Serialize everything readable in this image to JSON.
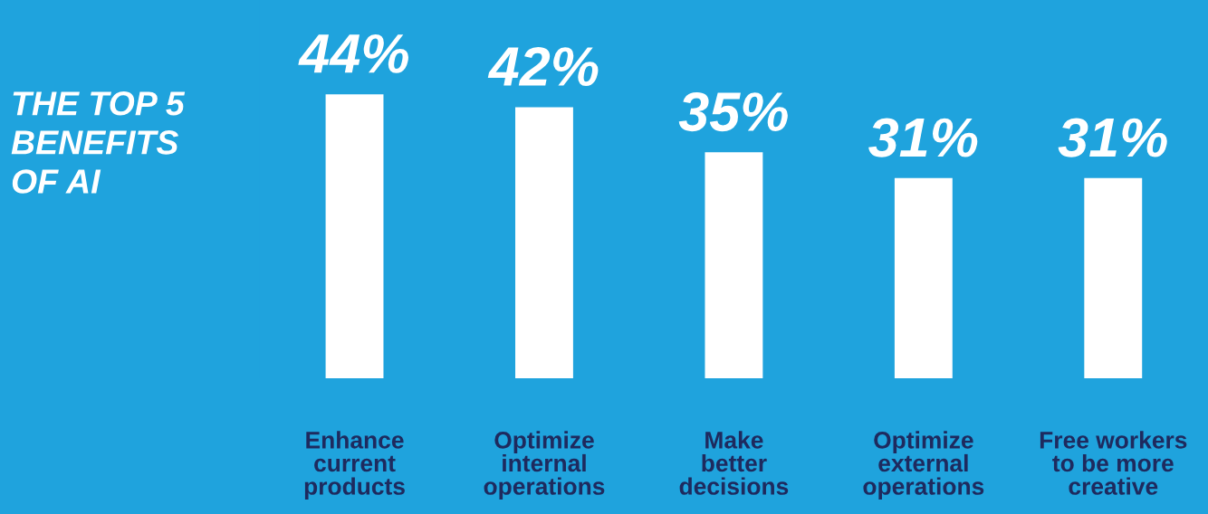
{
  "chart_data": {
    "type": "bar",
    "title": "THE TOP 5\nBENEFITS\nOF AI",
    "categories": [
      "Enhance\ncurrent\nproducts",
      "Optimize\ninternal\noperations",
      "Make\nbetter\ndecisions",
      "Optimize\nexternal\noperations",
      "Free workers\nto be more\ncreative"
    ],
    "values": [
      44,
      42,
      35,
      31,
      31
    ],
    "value_labels": [
      "44%",
      "42%",
      "35%",
      "31%",
      "31%"
    ],
    "color": "#ffffff",
    "ylim": [
      0,
      58.6
    ]
  }
}
